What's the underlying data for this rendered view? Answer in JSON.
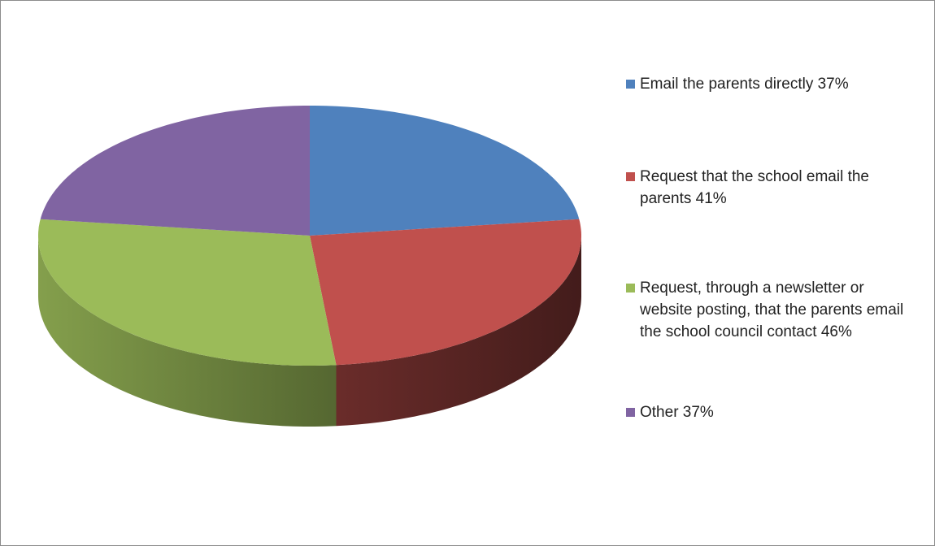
{
  "chart_data": {
    "type": "pie3d",
    "categories": [
      "Email the parents directly 37%",
      "Request that the school email the parents 41%",
      "Request, through a newsletter or website posting, that the parents email the school council contact 46%",
      "Other 37%"
    ],
    "values": [
      37,
      41,
      46,
      37
    ],
    "colors": [
      "#4f81bd",
      "#c0504d",
      "#9bbb59",
      "#8064a2"
    ],
    "legend": "right"
  }
}
